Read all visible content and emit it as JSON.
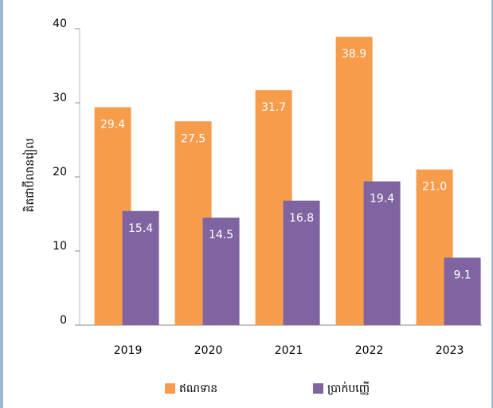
{
  "chart_data": {
    "type": "bar",
    "ylabel": "គិតជាប៊ីលានរៀល",
    "categories": [
      "2019",
      "2020",
      "2021",
      "2022",
      "2023"
    ],
    "series": [
      {
        "name": "ឥណទាន",
        "color": "#f79c4b",
        "values": [
          29.4,
          27.5,
          31.7,
          38.9,
          21.0
        ],
        "value_labels": [
          "29.4",
          "27.5",
          "31.7",
          "38.9",
          "21.0"
        ]
      },
      {
        "name": "ប្រាក់បញ្ញើ",
        "color": "#8064a2",
        "values": [
          15.4,
          14.5,
          16.8,
          19.4,
          9.1
        ],
        "value_labels": [
          "15.4",
          "14.5",
          "16.8",
          "19.4",
          "9.1"
        ]
      }
    ],
    "ylim": [
      0,
      40
    ],
    "yticks": [
      0,
      10,
      20,
      30,
      40
    ],
    "grid": false,
    "legend": "bottom"
  }
}
